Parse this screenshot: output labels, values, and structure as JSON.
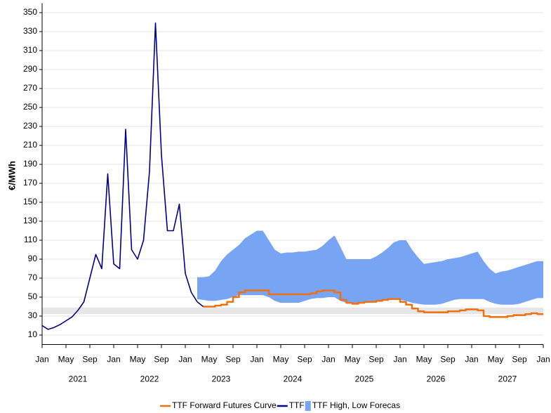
{
  "chart_data": {
    "type": "line",
    "y_label": "€/MWh",
    "ylim": [
      0,
      360
    ],
    "yticks": [
      10,
      30,
      50,
      70,
      90,
      110,
      130,
      150,
      170,
      190,
      210,
      230,
      250,
      270,
      290,
      310,
      330,
      350
    ],
    "grid": true,
    "shaded_band": {
      "range": [
        32,
        39
      ],
      "color": "#e6e6e6"
    },
    "xlim": [
      "2021-01",
      "2028-01"
    ],
    "xticks": [
      {
        "value": "2021-01",
        "label": "Jan"
      },
      {
        "value": "2021-05",
        "label": "May"
      },
      {
        "value": "2021-09",
        "label": "Sep"
      },
      {
        "value": "2022-01",
        "label": "Jan"
      },
      {
        "value": "2022-05",
        "label": "May"
      },
      {
        "value": "2022-09",
        "label": "Sep"
      },
      {
        "value": "2023-01",
        "label": "Jan"
      },
      {
        "value": "2023-05",
        "label": "May"
      },
      {
        "value": "2023-09",
        "label": "Sep"
      },
      {
        "value": "2024-01",
        "label": "Jan"
      },
      {
        "value": "2024-05",
        "label": "May"
      },
      {
        "value": "2024-09",
        "label": "Sep"
      },
      {
        "value": "2025-01",
        "label": "Jan"
      },
      {
        "value": "2025-05",
        "label": "May"
      },
      {
        "value": "2025-09",
        "label": "Sep"
      },
      {
        "value": "2026-01",
        "label": "Jan"
      },
      {
        "value": "2026-05",
        "label": "May"
      },
      {
        "value": "2026-09",
        "label": "Sep"
      },
      {
        "value": "2027-01",
        "label": "Jan"
      },
      {
        "value": "2027-05",
        "label": "May"
      },
      {
        "value": "2027-09",
        "label": "Sep"
      },
      {
        "value": "2028-01",
        "label": "Jan"
      }
    ],
    "year_labels": [
      "2021",
      "2022",
      "2023",
      "2024",
      "2025",
      "2026",
      "2027"
    ],
    "x": [
      "2021-01",
      "2021-02",
      "2021-03",
      "2021-04",
      "2021-05",
      "2021-06",
      "2021-07",
      "2021-08",
      "2021-09",
      "2021-10",
      "2021-11",
      "2021-12",
      "2022-01",
      "2022-02",
      "2022-03",
      "2022-04",
      "2022-05",
      "2022-06",
      "2022-07",
      "2022-08",
      "2022-09",
      "2022-10",
      "2022-11",
      "2022-12",
      "2023-01",
      "2023-02",
      "2023-03",
      "2023-04",
      "2023-05",
      "2023-06",
      "2023-07",
      "2023-08",
      "2023-09",
      "2023-10",
      "2023-11",
      "2023-12",
      "2024-01",
      "2024-02",
      "2024-03",
      "2024-04",
      "2024-05",
      "2024-06",
      "2024-07",
      "2024-08",
      "2024-09",
      "2024-10",
      "2024-11",
      "2024-12",
      "2025-01",
      "2025-02",
      "2025-03",
      "2025-04",
      "2025-05",
      "2025-06",
      "2025-07",
      "2025-08",
      "2025-09",
      "2025-10",
      "2025-11",
      "2025-12",
      "2026-01",
      "2026-02",
      "2026-03",
      "2026-04",
      "2026-05",
      "2026-06",
      "2026-07",
      "2026-08",
      "2026-09",
      "2026-10",
      "2026-11",
      "2026-12",
      "2027-01",
      "2027-02",
      "2027-03",
      "2027-04",
      "2027-05",
      "2027-06",
      "2027-07",
      "2027-08",
      "2027-09",
      "2027-10",
      "2027-11",
      "2027-12",
      "2028-01"
    ],
    "series": [
      {
        "name": "TTF Forward Futures Curve",
        "color": "#f07010",
        "type": "step",
        "values": [
          null,
          null,
          null,
          null,
          null,
          null,
          null,
          null,
          null,
          null,
          null,
          null,
          null,
          null,
          null,
          null,
          null,
          null,
          null,
          null,
          null,
          null,
          null,
          null,
          null,
          null,
          null,
          40,
          40,
          41,
          42,
          45,
          50,
          55,
          57,
          57,
          57,
          57,
          53,
          53,
          53,
          53,
          53,
          53,
          53,
          54,
          56,
          57,
          57,
          55,
          47,
          44,
          43,
          44,
          45,
          45,
          46,
          47,
          48,
          48,
          45,
          42,
          38,
          35,
          34,
          34,
          34,
          34,
          35,
          35,
          36,
          37,
          37,
          36,
          30,
          29,
          29,
          29,
          30,
          31,
          31,
          32,
          33,
          32,
          32
        ]
      },
      {
        "name": "TTF",
        "color": "#00008b",
        "type": "line",
        "values": [
          20,
          16,
          18,
          21,
          25,
          29,
          36,
          45,
          70,
          95,
          80,
          180,
          85,
          80,
          227,
          100,
          90,
          110,
          183,
          339,
          200,
          120,
          120,
          148,
          75,
          55,
          45,
          40,
          null,
          null,
          null,
          null,
          null,
          null,
          null,
          null,
          null,
          null,
          null,
          null,
          null,
          null,
          null,
          null,
          null,
          null,
          null,
          null,
          null,
          null,
          null,
          null,
          null,
          null,
          null,
          null,
          null,
          null,
          null,
          null,
          null,
          null,
          null,
          null,
          null,
          null,
          null,
          null,
          null,
          null,
          null,
          null,
          null,
          null,
          null,
          null,
          null,
          null,
          null,
          null,
          null,
          null,
          null,
          null,
          null
        ]
      },
      {
        "name": "TTF High, Low Forecas",
        "color": "#78a4f4",
        "type": "band",
        "high": [
          null,
          null,
          null,
          null,
          null,
          null,
          null,
          null,
          null,
          null,
          null,
          null,
          null,
          null,
          null,
          null,
          null,
          null,
          null,
          null,
          null,
          null,
          null,
          null,
          null,
          null,
          71,
          71,
          72,
          78,
          88,
          95,
          100,
          105,
          112,
          116,
          120,
          120,
          110,
          100,
          96,
          97,
          97,
          98,
          98,
          99,
          100,
          104,
          110,
          115,
          103,
          90,
          90,
          90,
          90,
          90,
          93,
          97,
          102,
          108,
          110,
          110,
          100,
          92,
          85,
          86,
          87,
          88,
          90,
          91,
          92,
          94,
          96,
          98,
          88,
          80,
          75,
          77,
          78,
          80,
          82,
          84,
          86,
          88,
          88
        ],
        "low": [
          null,
          null,
          null,
          null,
          null,
          null,
          null,
          null,
          null,
          null,
          null,
          null,
          null,
          null,
          null,
          null,
          null,
          null,
          null,
          null,
          null,
          null,
          null,
          null,
          null,
          null,
          48,
          47,
          46,
          46,
          47,
          48,
          50,
          52,
          52,
          52,
          52,
          52,
          50,
          46,
          44,
          44,
          44,
          44,
          46,
          48,
          49,
          49,
          50,
          50,
          46,
          44,
          43,
          43,
          44,
          44,
          45,
          46,
          47,
          47,
          47,
          46,
          44,
          43,
          42,
          42,
          42,
          43,
          45,
          47,
          48,
          48,
          48,
          48,
          48,
          45,
          43,
          42,
          42,
          42,
          43,
          45,
          47,
          49,
          49
        ]
      }
    ]
  }
}
